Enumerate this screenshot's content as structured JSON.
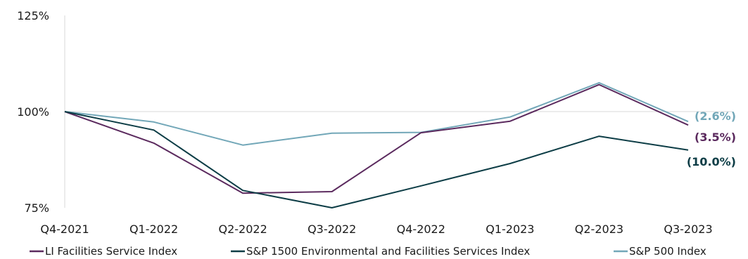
{
  "chart_data": {
    "type": "line",
    "categories": [
      "Q4-2021",
      "Q1-2022",
      "Q2-2022",
      "Q3-2022",
      "Q4-2022",
      "Q1-2023",
      "Q2-2023",
      "Q3-2023"
    ],
    "y_ticks": [
      "125%",
      "100%",
      "75%"
    ],
    "ylim": [
      75,
      125
    ],
    "grid": "horizontal line at 100%",
    "legend_position": "bottom",
    "series": [
      {
        "name": "LI Facilities Service Index",
        "color": "#5b2a5e",
        "values": [
          100,
          91.8,
          78.8,
          79.2,
          94.5,
          97.5,
          107.0,
          96.5
        ],
        "end_label": "(3.5%)"
      },
      {
        "name": "S&P 1500 Environmental and Facilities Services Index",
        "color": "#0d3d46",
        "values": [
          100,
          95.2,
          79.5,
          75.0,
          80.7,
          86.5,
          93.6,
          90.0
        ],
        "end_label": "(10.0%)"
      },
      {
        "name": "S&P 500 Index",
        "color": "#72a7b8",
        "values": [
          100,
          97.3,
          91.3,
          94.4,
          94.6,
          98.6,
          107.5,
          97.4
        ],
        "end_label": "(2.6%)"
      }
    ]
  }
}
